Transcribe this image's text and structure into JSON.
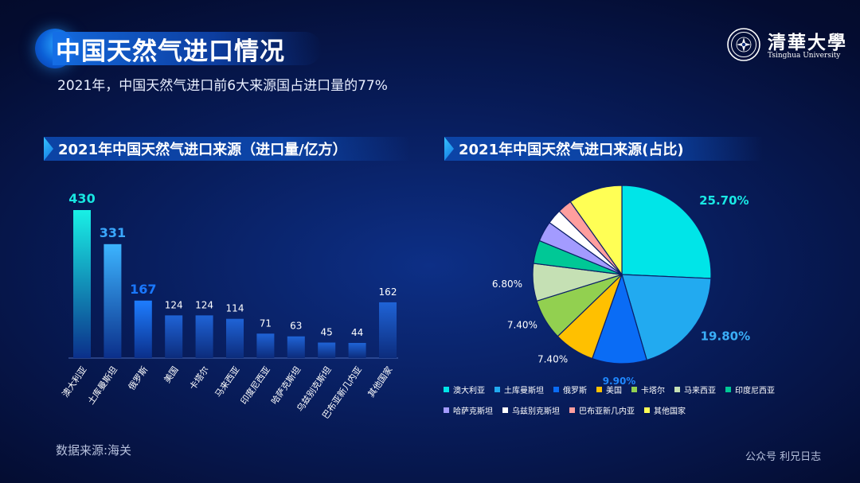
{
  "page": {
    "title": "中国天然气进口情况",
    "subtitle": "2021年，中国天然气进口前6大来源国占进口量的77%",
    "source": "数据来源:海关",
    "wechat": "公众号 利兄日志"
  },
  "logo": {
    "name": "清華大學",
    "english": "Tsinghua University",
    "icon": "tsinghua-seal"
  },
  "chart_data": [
    {
      "type": "bar",
      "title": "2021年中国天然气进口来源（进口量/亿方）",
      "xlabel": "",
      "ylabel": "",
      "ylim": [
        0,
        430
      ],
      "grid": false,
      "categories": [
        "澳大利亚",
        "土库曼斯坦",
        "俄罗斯",
        "美国",
        "卡塔尔",
        "马来西亚",
        "印度尼西亚",
        "哈萨克斯坦",
        "乌兹别克斯坦",
        "巴布亚新几内亚",
        "其他国家"
      ],
      "values": [
        430,
        331,
        167,
        124,
        124,
        114,
        71,
        63,
        45,
        44,
        162
      ],
      "value_labels": [
        "430",
        "331",
        "167",
        "124",
        "124",
        "114",
        "71",
        "63",
        "45",
        "44",
        "162"
      ],
      "highlight_colors": [
        "#18e6e0",
        "#3aa8ff",
        "#1a78ff"
      ]
    },
    {
      "type": "pie",
      "title": "2021年中国天然气进口来源(占比)",
      "legend": "bottom",
      "labels": [
        "澳大利亚",
        "土库曼斯坦",
        "俄罗斯",
        "美国",
        "卡塔尔",
        "马来西亚",
        "印度尼西亚",
        "哈萨克斯坦",
        "乌兹别克斯坦",
        "巴布亚新几内亚",
        "其他国家"
      ],
      "values": [
        25.7,
        19.8,
        9.9,
        7.4,
        7.4,
        6.8,
        4.2,
        3.7,
        2.7,
        2.6,
        9.8
      ],
      "colors": [
        "#00e5e8",
        "#22aaf0",
        "#0a6cf5",
        "#ffc000",
        "#92d050",
        "#c5e0b4",
        "#00c896",
        "#a39bff",
        "#ffffff",
        "#ff9e9e",
        "#ffff55"
      ],
      "shown_labels": [
        {
          "index": 0,
          "text": "25.70%"
        },
        {
          "index": 1,
          "text": "19.80%"
        },
        {
          "index": 2,
          "text": "9.90%"
        },
        {
          "index": 3,
          "text": "7.40%"
        },
        {
          "index": 4,
          "text": "7.40%"
        },
        {
          "index": 5,
          "text": "6.80%"
        }
      ]
    }
  ]
}
